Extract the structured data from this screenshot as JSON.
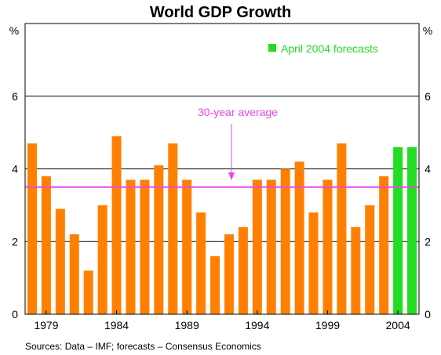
{
  "chart_data": {
    "type": "bar",
    "title": "World GDP Growth",
    "ylabel_left": "%",
    "ylabel_right": "%",
    "ylim": [
      0,
      8
    ],
    "yticks": [
      0,
      2,
      4,
      6
    ],
    "grid": true,
    "x": [
      1978,
      1979,
      1980,
      1981,
      1982,
      1983,
      1984,
      1985,
      1986,
      1987,
      1988,
      1989,
      1990,
      1991,
      1992,
      1993,
      1994,
      1995,
      1996,
      1997,
      1998,
      1999,
      2000,
      2001,
      2002,
      2003,
      2004,
      2005
    ],
    "xtick_labels": [
      "1979",
      "1984",
      "1989",
      "1994",
      "1999",
      "2004"
    ],
    "series": [
      {
        "name": "",
        "color": "#ff8000",
        "x": [
          1978,
          1979,
          1980,
          1981,
          1982,
          1983,
          1984,
          1985,
          1986,
          1987,
          1988,
          1989,
          1990,
          1991,
          1992,
          1993,
          1994,
          1995,
          1996,
          1997,
          1998,
          1999,
          2000,
          2001,
          2002,
          2003
        ],
        "values": [
          4.7,
          3.8,
          2.9,
          2.2,
          1.2,
          3.0,
          4.9,
          3.7,
          3.7,
          4.1,
          4.7,
          3.7,
          2.8,
          1.6,
          2.2,
          2.4,
          3.7,
          3.7,
          4.0,
          4.2,
          2.8,
          3.7,
          4.7,
          2.4,
          3.0,
          3.8
        ]
      },
      {
        "name": "April 2004 forecasts",
        "color": "#22dd22",
        "x": [
          2004,
          2005
        ],
        "values": [
          4.6,
          4.6
        ]
      }
    ],
    "average": {
      "label": "30-year average",
      "value": 3.5,
      "color": "#ee44ee"
    },
    "legend_position": "top-right",
    "source": "Sources: Data – IMF; forecasts – Consensus Economics"
  }
}
